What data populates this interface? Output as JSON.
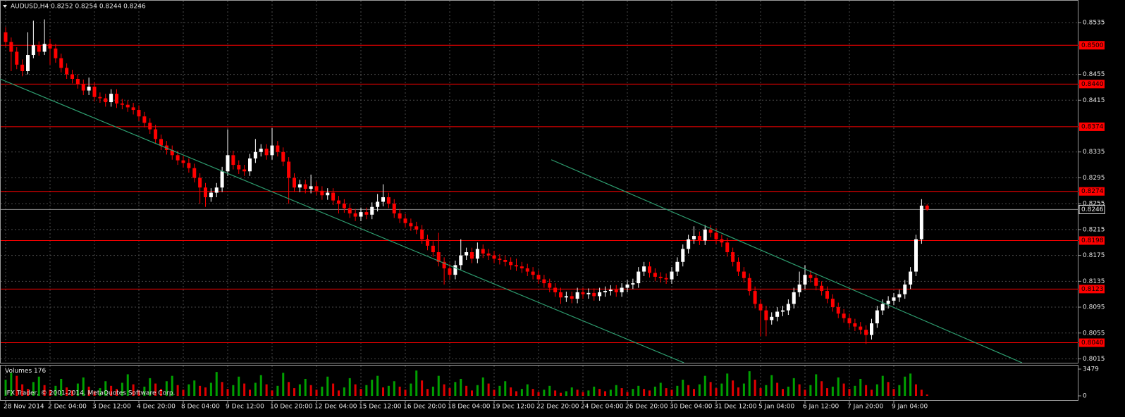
{
  "chart_data": {
    "type": "candlestick",
    "title": "AUDUSD,H4  0.8252 0.8254 0.8244 0.8246",
    "categories": [
      "28 Nov 2014",
      null,
      null,
      null,
      null,
      null,
      null,
      null,
      "2 Dec 04:00",
      null,
      null,
      null,
      null,
      null,
      null,
      null,
      "3 Dec 12:00",
      null,
      null,
      null,
      null,
      null,
      null,
      null,
      "4 Dec 20:00",
      null,
      null,
      null,
      null,
      null,
      null,
      null,
      "8 Dec 04:00",
      null,
      null,
      null,
      null,
      null,
      null,
      null,
      "9 Dec 12:00",
      null,
      null,
      null,
      null,
      null,
      null,
      null,
      "10 Dec 20:00",
      null,
      null,
      null,
      null,
      null,
      null,
      null,
      "12 Dec 04:00",
      null,
      null,
      null,
      null,
      null,
      null,
      null,
      "15 Dec 12:00",
      null,
      null,
      null,
      null,
      null,
      null,
      null,
      "16 Dec 20:00",
      null,
      null,
      null,
      null,
      null,
      null,
      null,
      "18 Dec 04:00",
      null,
      null,
      null,
      null,
      null,
      null,
      null,
      "19 Dec 12:00",
      null,
      null,
      null,
      null,
      null,
      null,
      null,
      "22 Dec 20:00",
      null,
      null,
      null,
      null,
      null,
      null,
      null,
      "24 Dec 04:00",
      null,
      null,
      null,
      null,
      null,
      null,
      null,
      "26 Dec 20:00",
      null,
      null,
      null,
      null,
      null,
      null,
      null,
      "30 Dec 04:00",
      null,
      null,
      null,
      null,
      null,
      null,
      null,
      "31 Dec 12:00",
      null,
      null,
      null,
      null,
      null,
      null,
      null,
      "5 Jan 04:00",
      null,
      null,
      null,
      null,
      null,
      null,
      null,
      "6 Jan 12:00",
      null,
      null,
      null,
      null,
      null,
      null,
      null,
      "7 Jan 20:00",
      null,
      null,
      null,
      null,
      null,
      null,
      null,
      "9 Jan 04:00",
      null,
      null,
      null,
      null,
      null,
      null
    ],
    "open": [
      0.852,
      0.8505,
      0.849,
      0.847,
      0.846,
      0.8485,
      0.85,
      0.849,
      0.8502,
      0.8495,
      0.848,
      0.8465,
      0.8455,
      0.8448,
      0.844,
      0.843,
      0.8436,
      0.842,
      0.8418,
      0.8412,
      0.8425,
      0.841,
      0.8408,
      0.8404,
      0.84,
      0.839,
      0.838,
      0.837,
      0.8355,
      0.8345,
      0.8338,
      0.833,
      0.8322,
      0.8318,
      0.831,
      0.8295,
      0.828,
      0.8265,
      0.8272,
      0.828,
      0.8305,
      0.833,
      0.8315,
      0.8308,
      0.8305,
      0.8325,
      0.8335,
      0.834,
      0.833,
      0.8345,
      0.8335,
      0.832,
      0.8295,
      0.828,
      0.8285,
      0.8278,
      0.8282,
      0.8275,
      0.8268,
      0.8272,
      0.826,
      0.8255,
      0.8248,
      0.824,
      0.8235,
      0.8242,
      0.8238,
      0.825,
      0.8258,
      0.8265,
      0.8255,
      0.824,
      0.8232,
      0.8225,
      0.822,
      0.8215,
      0.82,
      0.819,
      0.818,
      0.8165,
      0.8155,
      0.8145,
      0.816,
      0.8175,
      0.818,
      0.817,
      0.8185,
      0.8178,
      0.8175,
      0.817,
      0.8168,
      0.8165,
      0.816,
      0.8158,
      0.8155,
      0.815,
      0.8145,
      0.8138,
      0.8132,
      0.8125,
      0.8118,
      0.811,
      0.8112,
      0.8108,
      0.8118,
      0.8115,
      0.8117,
      0.8112,
      0.8118,
      0.812,
      0.8122,
      0.8118,
      0.8125,
      0.813,
      0.8132,
      0.815,
      0.8158,
      0.8148,
      0.8142,
      0.814,
      0.8138,
      0.815,
      0.8165,
      0.8185,
      0.82,
      0.8205,
      0.8198,
      0.8215,
      0.821,
      0.82,
      0.8195,
      0.818,
      0.8165,
      0.815,
      0.814,
      0.812,
      0.81,
      0.809,
      0.8075,
      0.808,
      0.8088,
      0.809,
      0.81,
      0.8118,
      0.813,
      0.8145,
      0.814,
      0.8128,
      0.812,
      0.8108,
      0.8095,
      0.8085,
      0.8078,
      0.807,
      0.8065,
      0.806,
      0.8052,
      0.807,
      0.809,
      0.81,
      0.8105,
      0.811,
      0.8115,
      0.813,
      0.815,
      0.82,
      0.8252
    ],
    "high": [
      0.8528,
      0.8512,
      0.8497,
      0.8478,
      0.852,
      0.8538,
      0.8506,
      0.854,
      0.851,
      0.8502,
      0.8487,
      0.8472,
      0.8462,
      0.8455,
      0.8447,
      0.845,
      0.8443,
      0.8427,
      0.8425,
      0.8432,
      0.8432,
      0.8417,
      0.8415,
      0.8411,
      0.8407,
      0.8397,
      0.8387,
      0.8377,
      0.8362,
      0.8352,
      0.8345,
      0.8337,
      0.8329,
      0.8325,
      0.8317,
      0.8302,
      0.8287,
      0.8279,
      0.8287,
      0.8312,
      0.837,
      0.8337,
      0.8322,
      0.8315,
      0.8332,
      0.8355,
      0.8347,
      0.8347,
      0.8372,
      0.8352,
      0.8342,
      0.8327,
      0.8302,
      0.8292,
      0.8292,
      0.83,
      0.8289,
      0.8282,
      0.8279,
      0.8279,
      0.8267,
      0.8262,
      0.8255,
      0.8247,
      0.8249,
      0.8249,
      0.8257,
      0.827,
      0.8285,
      0.8272,
      0.8262,
      0.8247,
      0.8239,
      0.8232,
      0.8227,
      0.8222,
      0.8207,
      0.8197,
      0.821,
      0.8172,
      0.8162,
      0.8167,
      0.82,
      0.8187,
      0.8187,
      0.8195,
      0.8192,
      0.8185,
      0.8182,
      0.8177,
      0.8175,
      0.8172,
      0.817,
      0.8165,
      0.8162,
      0.8157,
      0.8152,
      0.8145,
      0.8139,
      0.8132,
      0.8125,
      0.8119,
      0.8119,
      0.8125,
      0.8125,
      0.8124,
      0.8124,
      0.8125,
      0.8127,
      0.8129,
      0.8129,
      0.8132,
      0.8137,
      0.8139,
      0.8157,
      0.8165,
      0.8165,
      0.8155,
      0.8149,
      0.8147,
      0.8157,
      0.8172,
      0.8192,
      0.8207,
      0.822,
      0.8212,
      0.8222,
      0.8222,
      0.8217,
      0.8207,
      0.8202,
      0.8187,
      0.8172,
      0.8157,
      0.8147,
      0.8127,
      0.8107,
      0.8097,
      0.8087,
      0.8095,
      0.8097,
      0.8107,
      0.8125,
      0.815,
      0.816,
      0.8152,
      0.8147,
      0.8135,
      0.8127,
      0.8115,
      0.8102,
      0.8092,
      0.8085,
      0.8077,
      0.8072,
      0.8067,
      0.8077,
      0.8097,
      0.8107,
      0.8112,
      0.8117,
      0.8122,
      0.8137,
      0.8157,
      0.8207,
      0.8262,
      0.8254
    ],
    "low": [
      0.8498,
      0.846,
      0.8463,
      0.8452,
      0.8455,
      0.848,
      0.8484,
      0.8485,
      0.847,
      0.8473,
      0.8458,
      0.8448,
      0.8441,
      0.8433,
      0.8423,
      0.8423,
      0.8413,
      0.8411,
      0.8405,
      0.8405,
      0.8403,
      0.8401,
      0.8397,
      0.8393,
      0.8383,
      0.8373,
      0.8363,
      0.8348,
      0.8338,
      0.8331,
      0.8323,
      0.8315,
      0.8311,
      0.8303,
      0.8288,
      0.8255,
      0.825,
      0.8258,
      0.8265,
      0.8273,
      0.8298,
      0.8308,
      0.8301,
      0.8298,
      0.8298,
      0.8318,
      0.8328,
      0.8323,
      0.8323,
      0.8328,
      0.8313,
      0.8255,
      0.8273,
      0.8273,
      0.8271,
      0.8271,
      0.8268,
      0.8261,
      0.8261,
      0.8253,
      0.824,
      0.8241,
      0.8233,
      0.8228,
      0.8228,
      0.8231,
      0.8231,
      0.8243,
      0.8251,
      0.8248,
      0.8233,
      0.8225,
      0.8218,
      0.8213,
      0.8208,
      0.8193,
      0.8183,
      0.8173,
      0.8158,
      0.813,
      0.8138,
      0.8138,
      0.8153,
      0.8168,
      0.8163,
      0.8163,
      0.8171,
      0.8168,
      0.8163,
      0.8161,
      0.8158,
      0.8153,
      0.8151,
      0.8148,
      0.8143,
      0.8138,
      0.8131,
      0.8125,
      0.8118,
      0.8111,
      0.81,
      0.8103,
      0.8101,
      0.8101,
      0.8108,
      0.8108,
      0.8105,
      0.8105,
      0.8111,
      0.8113,
      0.8111,
      0.8111,
      0.8118,
      0.8123,
      0.8125,
      0.8143,
      0.8141,
      0.8135,
      0.8133,
      0.8131,
      0.8131,
      0.8143,
      0.8158,
      0.8178,
      0.8193,
      0.8191,
      0.8191,
      0.8203,
      0.8193,
      0.8188,
      0.8173,
      0.8158,
      0.8143,
      0.8133,
      0.8113,
      0.8093,
      0.805,
      0.805,
      0.8068,
      0.8073,
      0.8081,
      0.8083,
      0.8093,
      0.8111,
      0.8123,
      0.8133,
      0.8121,
      0.8113,
      0.8101,
      0.8088,
      0.8078,
      0.8071,
      0.8063,
      0.8058,
      0.8053,
      0.8038,
      0.8045,
      0.8063,
      0.8083,
      0.8093,
      0.8098,
      0.8103,
      0.8108,
      0.8123,
      0.8143,
      0.8193,
      0.8244
    ],
    "close": [
      0.8505,
      0.849,
      0.847,
      0.846,
      0.8485,
      0.85,
      0.849,
      0.8502,
      0.8495,
      0.848,
      0.8465,
      0.8455,
      0.8448,
      0.844,
      0.843,
      0.8436,
      0.842,
      0.8418,
      0.8412,
      0.8425,
      0.841,
      0.8408,
      0.8404,
      0.84,
      0.839,
      0.838,
      0.837,
      0.8355,
      0.8345,
      0.8338,
      0.833,
      0.8322,
      0.8318,
      0.831,
      0.8295,
      0.828,
      0.8265,
      0.8272,
      0.828,
      0.8305,
      0.833,
      0.8315,
      0.8308,
      0.8305,
      0.8325,
      0.8335,
      0.834,
      0.833,
      0.8345,
      0.8335,
      0.832,
      0.8295,
      0.828,
      0.8285,
      0.8278,
      0.8282,
      0.8275,
      0.8268,
      0.8272,
      0.826,
      0.8255,
      0.8248,
      0.824,
      0.8235,
      0.8242,
      0.8238,
      0.825,
      0.8258,
      0.8265,
      0.8255,
      0.824,
      0.8232,
      0.8225,
      0.822,
      0.8215,
      0.82,
      0.819,
      0.818,
      0.8165,
      0.8155,
      0.8145,
      0.816,
      0.8175,
      0.818,
      0.817,
      0.8185,
      0.8178,
      0.8175,
      0.817,
      0.8168,
      0.8165,
      0.816,
      0.8158,
      0.8155,
      0.815,
      0.8145,
      0.8138,
      0.8132,
      0.8125,
      0.8118,
      0.811,
      0.8112,
      0.8108,
      0.8118,
      0.8115,
      0.8117,
      0.8112,
      0.8118,
      0.812,
      0.8122,
      0.8118,
      0.8125,
      0.813,
      0.8132,
      0.815,
      0.8158,
      0.8148,
      0.8142,
      0.814,
      0.8138,
      0.815,
      0.8165,
      0.8185,
      0.82,
      0.8205,
      0.8198,
      0.8215,
      0.821,
      0.82,
      0.8195,
      0.818,
      0.8165,
      0.815,
      0.814,
      0.812,
      0.81,
      0.809,
      0.8075,
      0.808,
      0.8088,
      0.809,
      0.81,
      0.8118,
      0.813,
      0.8145,
      0.814,
      0.8128,
      0.812,
      0.8108,
      0.8095,
      0.8085,
      0.8078,
      0.807,
      0.8065,
      0.806,
      0.8052,
      0.807,
      0.809,
      0.81,
      0.8105,
      0.811,
      0.8115,
      0.813,
      0.815,
      0.82,
      0.8252,
      0.8246
    ],
    "up_color": "#ffffff",
    "down_color": "#ff0000",
    "ylim": [
      0.8009,
      0.857
    ],
    "yticks": [
      0.8535,
      0.8455,
      0.8415,
      0.8335,
      0.8295,
      0.8255,
      0.8215,
      0.8175,
      0.8135,
      0.8095,
      0.8055,
      0.8015
    ],
    "grid": true,
    "levels": [
      {
        "value": 0.85,
        "label": "0.8500"
      },
      {
        "value": 0.844,
        "label": "0.8440"
      },
      0.8374,
      0.8274,
      0.8198,
      0.8123,
      {
        "value": 0.804,
        "label": "0.8040"
      }
    ],
    "level_color": "#ff0000",
    "trendlines": [
      {
        "x": [
          -1.02,
          122.2
        ],
        "y": [
          0.8448,
          0.8009
        ]
      },
      {
        "x": [
          98.3,
          183.1
        ],
        "y": [
          0.8323,
          0.8009
        ]
      }
    ],
    "trendline_color": "#2e9e70",
    "volume": {
      "label": "Volumes",
      "values": [
        2100,
        3000,
        2600,
        1500,
        900,
        1800,
        2500,
        1400,
        800,
        1300,
        2200,
        1100,
        700,
        1600,
        2400,
        1200,
        600,
        1000,
        1900,
        1300,
        900,
        1700,
        2800,
        1500,
        700,
        1200,
        2300,
        1600,
        900,
        1900,
        2600,
        1400,
        800,
        1500,
        2000,
        1300,
        1100,
        1700,
        3100,
        1800,
        900,
        1400,
        2500,
        1600,
        800,
        1700,
        2700,
        1500,
        700,
        1300,
        3000,
        1800,
        1000,
        1500,
        2200,
        1400,
        800,
        1200,
        2500,
        1600,
        700,
        1100,
        2300,
        1500,
        900,
        1400,
        2100,
        2600,
        1100,
        1300,
        1900,
        1200,
        800,
        1600,
        3300,
        2000,
        900,
        1200,
        2600,
        1500,
        1000,
        1800,
        2200,
        1300,
        700,
        1400,
        2400,
        1600,
        800,
        1300,
        1900,
        1100,
        600,
        900,
        1500,
        900,
        500,
        800,
        1300,
        700,
        400,
        600,
        1100,
        800,
        500,
        700,
        1200,
        900,
        600,
        800,
        1400,
        1000,
        500,
        900,
        1300,
        900,
        700,
        1200,
        1700,
        1000,
        800,
        1300,
        2100,
        1400,
        900,
        1500,
        2600,
        1800,
        1000,
        1600,
        2900,
        2000,
        1100,
        1600,
        3200,
        2100,
        1000,
        1400,
        2700,
        1700,
        900,
        1200,
        2300,
        1500,
        800,
        1400,
        2800,
        1900,
        1000,
        1200,
        2400,
        1600,
        900,
        1300,
        2200,
        1400,
        800,
        1500,
        2600,
        1800,
        900,
        1400,
        2500,
        2900,
        1500,
        800,
        176
      ],
      "ylim": [
        0,
        3479
      ],
      "yticks": [
        3479,
        0
      ],
      "up_color": "#00a000",
      "down_color": "#e00000"
    },
    "copyright": "IFX Trader, © 2001-2014, MetaQuotes Software Corp."
  }
}
